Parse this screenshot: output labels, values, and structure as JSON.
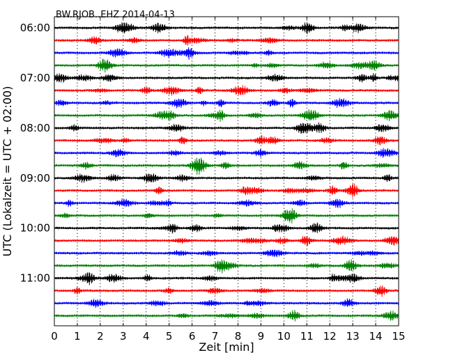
{
  "chart_data": {
    "type": "line",
    "title": "BW.RJOB..EHZ 2014-04-13",
    "xlabel": "Zeit  [min]",
    "ylabel": "UTC (Lokalzeit = UTC + 02:00)",
    "xlim": [
      0,
      15
    ],
    "x_ticks": [
      "0",
      "1",
      "2",
      "3",
      "4",
      "5",
      "6",
      "7",
      "8",
      "9",
      "10",
      "11",
      "12",
      "13",
      "14",
      "15"
    ],
    "y_tick_labels": [
      "06:00",
      "07:00",
      "08:00",
      "09:00",
      "10:00",
      "11:00"
    ],
    "trace_start_times": [
      "06:00",
      "06:15",
      "06:30",
      "06:45",
      "07:00",
      "07:15",
      "07:30",
      "07:45",
      "08:00",
      "08:15",
      "08:30",
      "08:45",
      "09:00",
      "09:15",
      "09:30",
      "09:45",
      "10:00",
      "10:15",
      "10:30",
      "10:45",
      "11:00",
      "11:15",
      "11:30",
      "11:45"
    ],
    "trace_colors": [
      "#000000",
      "#ff0000",
      "#0000ff",
      "#008000"
    ],
    "grid": "vertical dotted lines at each minute",
    "legend": "none"
  }
}
